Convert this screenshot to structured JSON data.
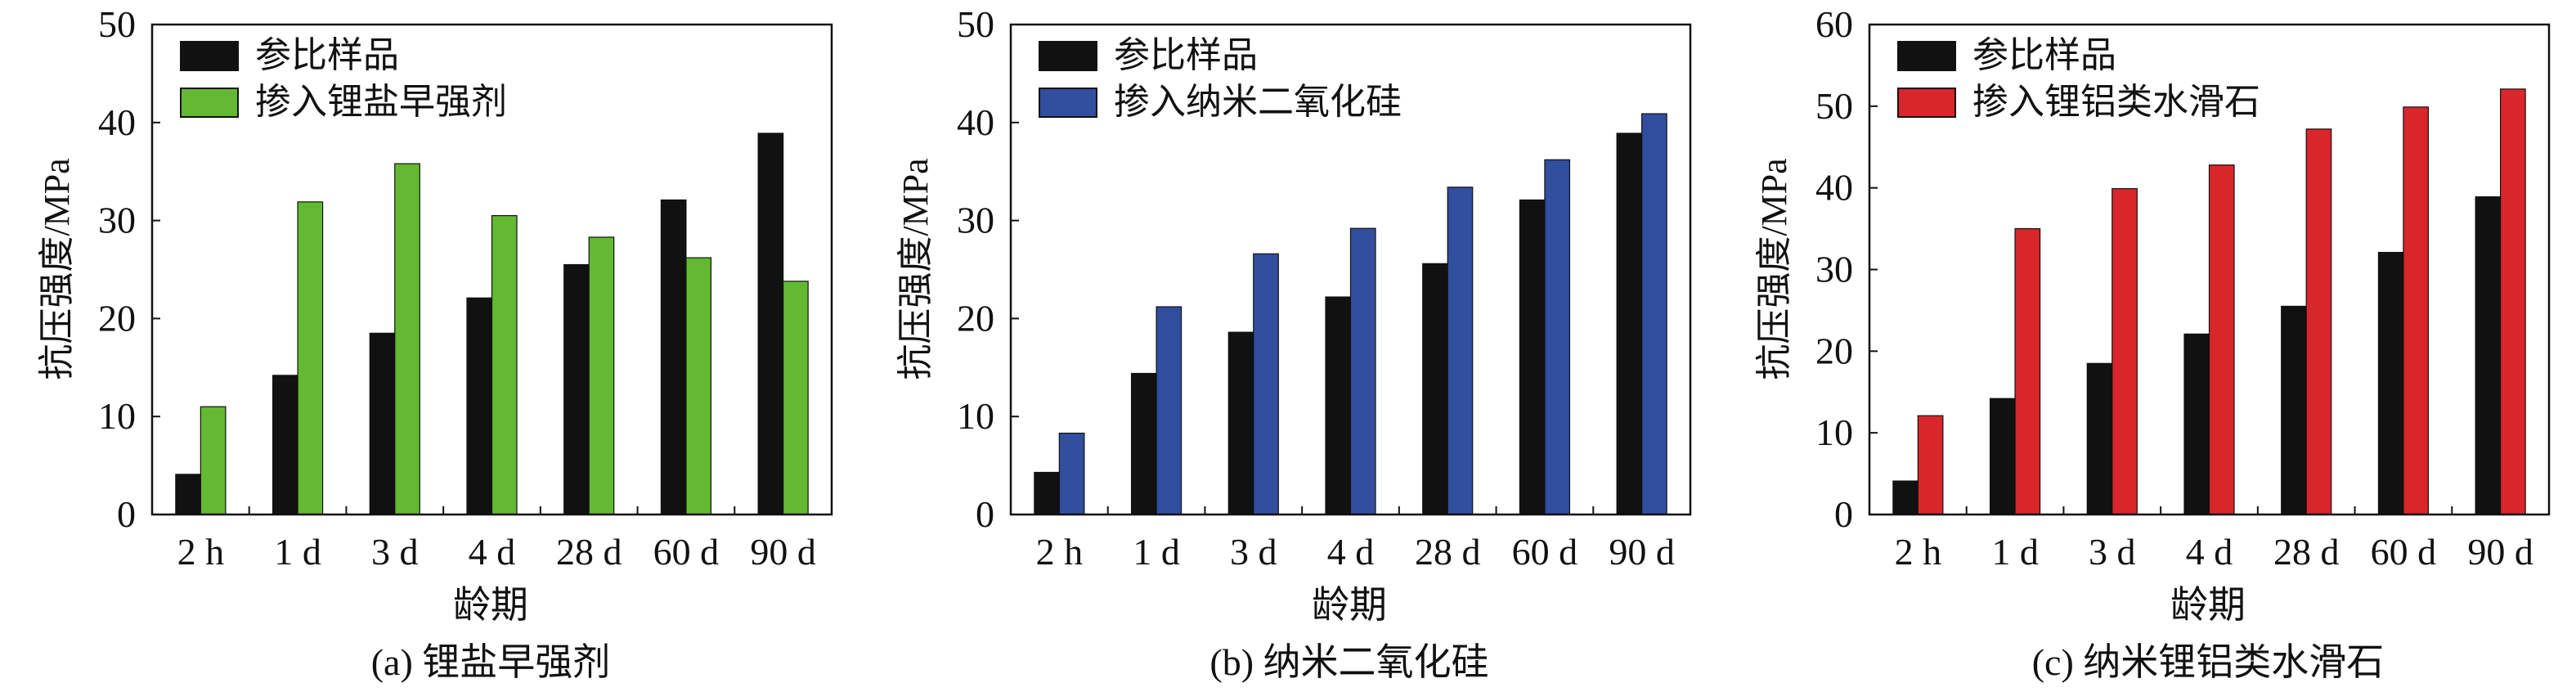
{
  "chart_data": [
    {
      "type": "bar",
      "caption": "(a) 锂盐早强剂",
      "xlabel": "龄期",
      "ylabel": "抗压强度/MPa",
      "categories": [
        "2 h",
        "1 d",
        "3 d",
        "4 d",
        "28 d",
        "60 d",
        "90 d"
      ],
      "ylim": [
        0,
        50
      ],
      "yticks": [
        0,
        10,
        20,
        30,
        40,
        50
      ],
      "legend_position": "top-left",
      "grid": false,
      "series": [
        {
          "name": "参比样品",
          "color": "#111111",
          "values": [
            4.1,
            14.2,
            18.5,
            22.1,
            25.5,
            32.1,
            38.9
          ]
        },
        {
          "name": "掺入锂盐早强剂",
          "color": "#63b931",
          "values": [
            11.0,
            31.9,
            35.8,
            30.5,
            28.3,
            26.2,
            23.8
          ]
        }
      ]
    },
    {
      "type": "bar",
      "caption": "(b) 纳米二氧化硅",
      "xlabel": "龄期",
      "ylabel": "抗压强度/MPa",
      "categories": [
        "2 h",
        "1 d",
        "3 d",
        "4 d",
        "28 d",
        "60 d",
        "90 d"
      ],
      "ylim": [
        0,
        50
      ],
      "yticks": [
        0,
        10,
        20,
        30,
        40,
        50
      ],
      "legend_position": "top-left",
      "grid": false,
      "series": [
        {
          "name": "参比样品",
          "color": "#111111",
          "values": [
            4.3,
            14.4,
            18.6,
            22.2,
            25.6,
            32.1,
            38.9
          ]
        },
        {
          "name": "掺入纳米二氧化硅",
          "color": "#314e9f",
          "values": [
            8.3,
            21.2,
            26.6,
            29.2,
            33.4,
            36.2,
            40.9
          ]
        }
      ]
    },
    {
      "type": "bar",
      "caption": "(c) 纳米锂铝类水滑石",
      "xlabel": "龄期",
      "ylabel": "抗压强度/MPa",
      "categories": [
        "2 h",
        "1 d",
        "3 d",
        "4 d",
        "28 d",
        "60 d",
        "90 d"
      ],
      "ylim": [
        0,
        60
      ],
      "yticks": [
        0,
        10,
        20,
        30,
        40,
        50,
        60
      ],
      "legend_position": "top-left",
      "grid": false,
      "series": [
        {
          "name": "参比样品",
          "color": "#111111",
          "values": [
            4.1,
            14.2,
            18.5,
            22.1,
            25.5,
            32.1,
            38.9
          ]
        },
        {
          "name": "掺入锂铝类水滑石",
          "color": "#d9262b",
          "values": [
            12.1,
            35.0,
            39.9,
            42.8,
            47.2,
            49.9,
            52.1
          ]
        }
      ]
    }
  ]
}
